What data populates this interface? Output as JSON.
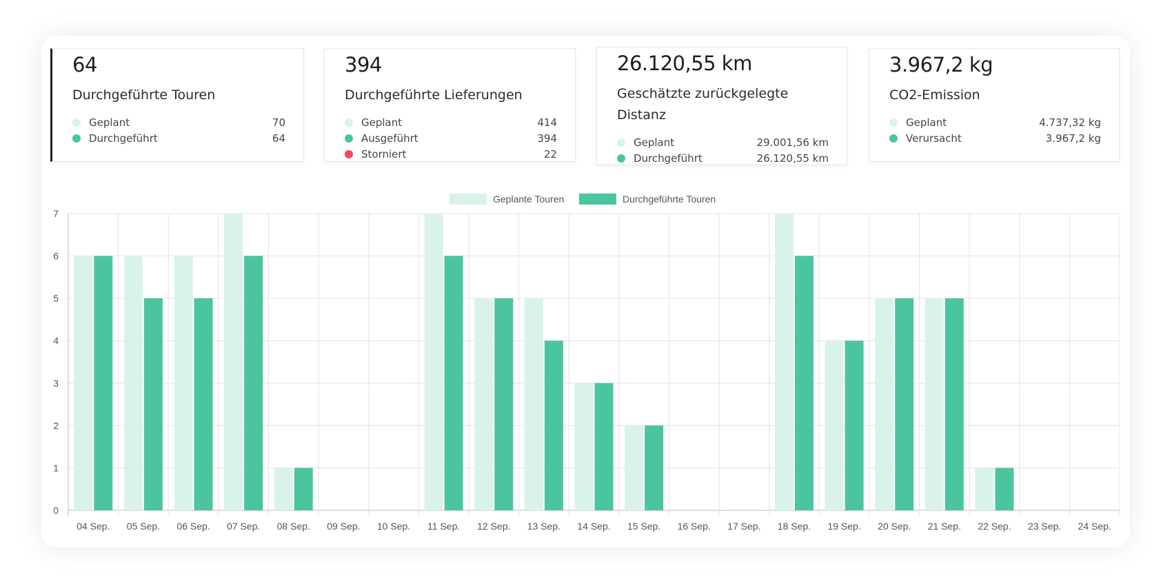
{
  "colors": {
    "planned": "#d9f3ea",
    "done": "#4bc59f",
    "cancelled": "#ef4a5e"
  },
  "cards": [
    {
      "value": "64",
      "label": "Durchgeführte Touren",
      "rows": [
        {
          "label": "Geplant",
          "value": "70",
          "color": "#d9f3ea"
        },
        {
          "label": "Durchgeführt",
          "value": "64",
          "color": "#4bc59f"
        }
      ]
    },
    {
      "value": "394",
      "label": "Durchgeführte Lieferungen",
      "rows": [
        {
          "label": "Geplant",
          "value": "414",
          "color": "#d9f3ea"
        },
        {
          "label": "Ausgeführt",
          "value": "394",
          "color": "#4bc59f"
        },
        {
          "label": "Storniert",
          "value": "22",
          "color": "#ef4a5e"
        }
      ]
    },
    {
      "value": "26.120,55 km",
      "label": "Geschätzte zurückgelegte Distanz",
      "rows": [
        {
          "label": "Geplant",
          "value": "29.001,56 km",
          "color": "#d9f3ea"
        },
        {
          "label": "Durchgeführt",
          "value": "26.120,55 km",
          "color": "#4bc59f"
        }
      ]
    },
    {
      "value": "3.967,2 kg",
      "label": "CO2-Emission",
      "rows": [
        {
          "label": "Geplant",
          "value": "4.737,32 kg",
          "color": "#d9f3ea"
        },
        {
          "label": "Verursacht",
          "value": "3.967,2 kg",
          "color": "#4bc59f"
        }
      ]
    }
  ],
  "chart_data": {
    "type": "bar",
    "categories": [
      "04 Sep.",
      "05 Sep.",
      "06 Sep.",
      "07 Sep.",
      "08 Sep.",
      "09 Sep.",
      "10 Sep.",
      "11 Sep.",
      "12 Sep.",
      "13 Sep.",
      "14 Sep.",
      "15 Sep.",
      "16 Sep.",
      "17 Sep.",
      "18 Sep.",
      "19 Sep.",
      "20 Sep.",
      "21 Sep.",
      "22 Sep.",
      "23 Sep.",
      "24 Sep."
    ],
    "series": [
      {
        "name": "Geplante Touren",
        "color": "#d9f3ea",
        "values": [
          6,
          6,
          6,
          7,
          1,
          0,
          0,
          7,
          5,
          5,
          3,
          2,
          0,
          0,
          7,
          4,
          5,
          5,
          1,
          0,
          0
        ]
      },
      {
        "name": "Durchgeführte Touren",
        "color": "#4bc59f",
        "values": [
          6,
          5,
          5,
          6,
          1,
          0,
          0,
          6,
          5,
          4,
          3,
          2,
          0,
          0,
          6,
          4,
          5,
          5,
          1,
          0,
          0
        ]
      }
    ],
    "ylim": [
      0,
      7
    ],
    "yticks": [
      0,
      1,
      2,
      3,
      4,
      5,
      6,
      7
    ],
    "grid": true,
    "legend": "top"
  }
}
